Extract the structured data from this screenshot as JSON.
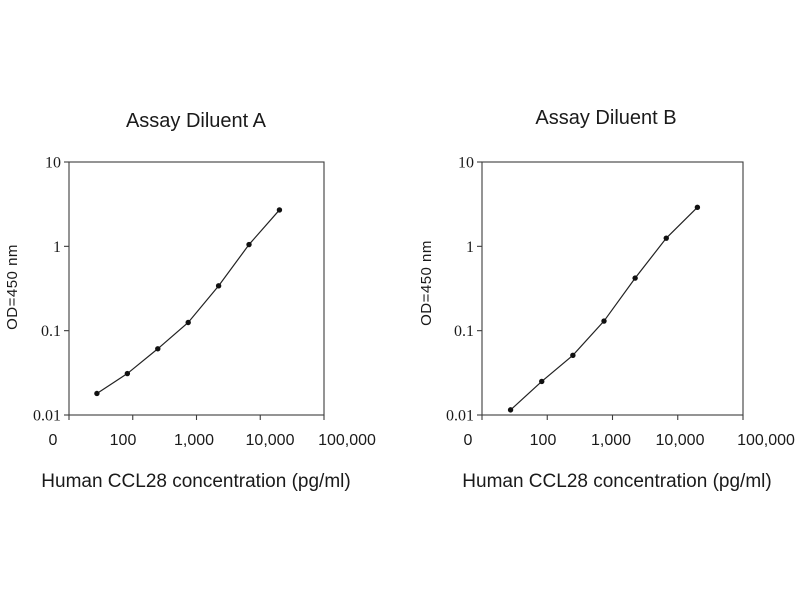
{
  "figure": {
    "background": "#ffffff",
    "ink": "#1a1a1a",
    "line_color": "#3c3c3c"
  },
  "chart_data": [
    {
      "type": "line",
      "title": "Assay Diluent A",
      "xlabel": "Human CCL28 concentration (pg/ml)",
      "ylabel": "OD=450 nm",
      "x_scale": "log",
      "y_scale": "log",
      "xlim": [
        10,
        100000
      ],
      "ylim": [
        0.01,
        10
      ],
      "x_tick_labels": [
        "0",
        "100",
        "1,000",
        "10,000",
        "100,000"
      ],
      "y_tick_labels": [
        "10",
        "1",
        "0.1",
        "0.01"
      ],
      "x": [
        27.4,
        82.3,
        247,
        741,
        2222,
        6667,
        20000
      ],
      "y": [
        0.018,
        0.031,
        0.061,
        0.125,
        0.34,
        1.05,
        2.7
      ],
      "marker": "filled-circle",
      "grid": false,
      "legend_position": "none"
    },
    {
      "type": "line",
      "title": "Assay Diluent B",
      "xlabel": "Human CCL28 concentration (pg/ml)",
      "ylabel": "OD=450 nm",
      "x_scale": "log",
      "y_scale": "log",
      "xlim": [
        10,
        100000
      ],
      "ylim": [
        0.01,
        10
      ],
      "x_tick_labels": [
        "0",
        "100",
        "1,000",
        "10,000",
        "100,000"
      ],
      "y_tick_labels": [
        "10",
        "1",
        "0.1",
        "0.01"
      ],
      "x": [
        27.4,
        82.3,
        247,
        741,
        2222,
        6667,
        20000
      ],
      "y": [
        0.0115,
        0.025,
        0.051,
        0.13,
        0.42,
        1.25,
        2.9
      ],
      "marker": "filled-circle",
      "grid": false,
      "legend_position": "none"
    }
  ]
}
